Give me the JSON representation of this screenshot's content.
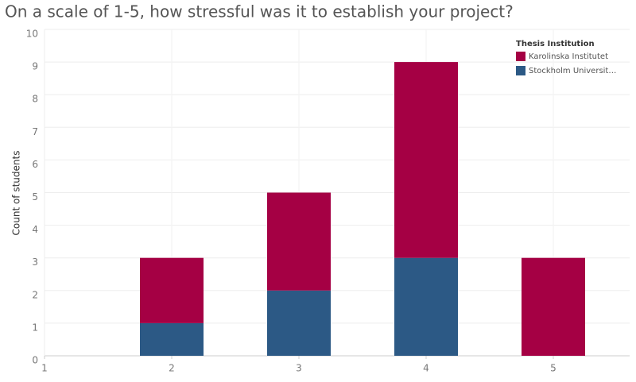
{
  "chart_data": {
    "type": "stacked-bar",
    "title": "On a scale of 1-5, how stressful was it to establish your project?",
    "y_label": "Count of students",
    "x": [
      2,
      3,
      4,
      5
    ],
    "xlim": [
      1,
      5.6
    ],
    "xticks": [
      1,
      2,
      3,
      4,
      5
    ],
    "ylim": [
      0,
      10
    ],
    "yticks": [
      0,
      1,
      2,
      3,
      4,
      5,
      6,
      7,
      8,
      9,
      10
    ],
    "grid": true,
    "legend_title": "Thesis Institution",
    "legend_position": "top-right",
    "series": [
      {
        "name": "Stockholm Universit…",
        "color": "#2c5985",
        "values": [
          1,
          2,
          3,
          0
        ]
      },
      {
        "name": "Karolinska Institutet",
        "color": "#a50044",
        "values": [
          2,
          3,
          6,
          3
        ]
      }
    ]
  }
}
